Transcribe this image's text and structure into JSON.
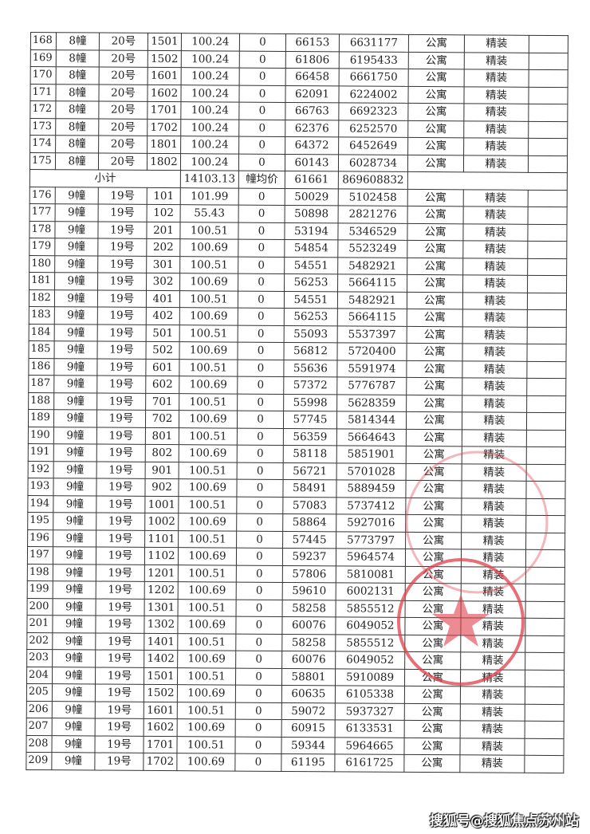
{
  "columns_note": "",
  "rows": [
    [
      "168",
      "8幢",
      "20号",
      "1501",
      "100.24",
      "0",
      "66153",
      "6631177",
      "公寓",
      "精装",
      ""
    ],
    [
      "169",
      "8幢",
      "20号",
      "1502",
      "100.24",
      "0",
      "61806",
      "6195433",
      "公寓",
      "精装",
      ""
    ],
    [
      "170",
      "8幢",
      "20号",
      "1601",
      "100.24",
      "0",
      "66458",
      "6661750",
      "公寓",
      "精装",
      ""
    ],
    [
      "171",
      "8幢",
      "20号",
      "1602",
      "100.24",
      "0",
      "62091",
      "6224002",
      "公寓",
      "精装",
      ""
    ],
    [
      "172",
      "8幢",
      "20号",
      "1701",
      "100.24",
      "0",
      "66763",
      "6692323",
      "公寓",
      "精装",
      ""
    ],
    [
      "173",
      "8幢",
      "20号",
      "1702",
      "100.24",
      "0",
      "62376",
      "6252570",
      "公寓",
      "精装",
      ""
    ],
    [
      "174",
      "8幢",
      "20号",
      "1801",
      "100.24",
      "0",
      "64372",
      "6452649",
      "公寓",
      "精装",
      ""
    ],
    [
      "175",
      "8幢",
      "20号",
      "1802",
      "100.24",
      "0",
      "60143",
      "6028734",
      "公寓",
      "精装",
      ""
    ]
  ],
  "subtotal": {
    "label": "小计",
    "area": "14103.13",
    "avg_label": "幢均价",
    "avg_price": "61661",
    "total": "869608832"
  },
  "rows2": [
    [
      "176",
      "9幢",
      "19号",
      "101",
      "101.99",
      "0",
      "50029",
      "5102458",
      "公寓",
      "精装",
      ""
    ],
    [
      "177",
      "9幢",
      "19号",
      "102",
      "55.43",
      "0",
      "50898",
      "2821276",
      "公寓",
      "精装",
      ""
    ],
    [
      "178",
      "9幢",
      "19号",
      "201",
      "100.51",
      "0",
      "53194",
      "5346529",
      "公寓",
      "精装",
      ""
    ],
    [
      "179",
      "9幢",
      "19号",
      "202",
      "100.69",
      "0",
      "54854",
      "5523249",
      "公寓",
      "精装",
      ""
    ],
    [
      "180",
      "9幢",
      "19号",
      "301",
      "100.51",
      "0",
      "54551",
      "5482921",
      "公寓",
      "精装",
      ""
    ],
    [
      "181",
      "9幢",
      "19号",
      "302",
      "100.69",
      "0",
      "56253",
      "5664115",
      "公寓",
      "精装",
      ""
    ],
    [
      "182",
      "9幢",
      "19号",
      "401",
      "100.51",
      "0",
      "54551",
      "5482921",
      "公寓",
      "精装",
      ""
    ],
    [
      "183",
      "9幢",
      "19号",
      "402",
      "100.69",
      "0",
      "56253",
      "5664115",
      "公寓",
      "精装",
      ""
    ],
    [
      "184",
      "9幢",
      "19号",
      "501",
      "100.51",
      "0",
      "55093",
      "5537397",
      "公寓",
      "精装",
      ""
    ],
    [
      "185",
      "9幢",
      "19号",
      "502",
      "100.69",
      "0",
      "56812",
      "5720400",
      "公寓",
      "精装",
      ""
    ],
    [
      "186",
      "9幢",
      "19号",
      "601",
      "100.51",
      "0",
      "55636",
      "5591974",
      "公寓",
      "精装",
      ""
    ],
    [
      "187",
      "9幢",
      "19号",
      "602",
      "100.69",
      "0",
      "57372",
      "5776787",
      "公寓",
      "精装",
      ""
    ],
    [
      "188",
      "9幢",
      "19号",
      "701",
      "100.51",
      "0",
      "55998",
      "5628359",
      "公寓",
      "精装",
      ""
    ],
    [
      "189",
      "9幢",
      "19号",
      "702",
      "100.69",
      "0",
      "57745",
      "5814344",
      "公寓",
      "精装",
      ""
    ],
    [
      "190",
      "9幢",
      "19号",
      "801",
      "100.51",
      "0",
      "56359",
      "5664643",
      "公寓",
      "精装",
      ""
    ],
    [
      "191",
      "9幢",
      "19号",
      "802",
      "100.69",
      "0",
      "58118",
      "5851901",
      "公寓",
      "精装",
      ""
    ],
    [
      "192",
      "9幢",
      "19号",
      "901",
      "100.51",
      "0",
      "56721",
      "5701028",
      "公寓",
      "精装",
      ""
    ],
    [
      "193",
      "9幢",
      "19号",
      "902",
      "100.69",
      "0",
      "58491",
      "5889459",
      "公寓",
      "精装",
      ""
    ],
    [
      "194",
      "9幢",
      "19号",
      "1001",
      "100.51",
      "0",
      "57083",
      "5737412",
      "公寓",
      "精装",
      ""
    ],
    [
      "195",
      "9幢",
      "19号",
      "1002",
      "100.69",
      "0",
      "58864",
      "5927016",
      "公寓",
      "精装",
      ""
    ],
    [
      "196",
      "9幢",
      "19号",
      "1101",
      "100.51",
      "0",
      "57445",
      "5773797",
      "公寓",
      "精装",
      ""
    ],
    [
      "197",
      "9幢",
      "19号",
      "1102",
      "100.69",
      "0",
      "59237",
      "5964574",
      "公寓",
      "精装",
      ""
    ],
    [
      "198",
      "9幢",
      "19号",
      "1201",
      "100.51",
      "0",
      "57806",
      "5810081",
      "公寓",
      "精装",
      ""
    ],
    [
      "199",
      "9幢",
      "19号",
      "1202",
      "100.69",
      "0",
      "59610",
      "6002131",
      "公寓",
      "精装",
      ""
    ],
    [
      "200",
      "9幢",
      "19号",
      "1301",
      "100.51",
      "0",
      "58258",
      "5855512",
      "公寓",
      "精装",
      ""
    ],
    [
      "201",
      "9幢",
      "19号",
      "1302",
      "100.69",
      "0",
      "60076",
      "6049052",
      "公寓",
      "精装",
      ""
    ],
    [
      "202",
      "9幢",
      "19号",
      "1401",
      "100.51",
      "0",
      "58258",
      "5855512",
      "公寓",
      "精装",
      ""
    ],
    [
      "203",
      "9幢",
      "19号",
      "1402",
      "100.69",
      "0",
      "60076",
      "6049052",
      "公寓",
      "精装",
      ""
    ],
    [
      "204",
      "9幢",
      "19号",
      "1501",
      "100.51",
      "0",
      "58801",
      "5910089",
      "公寓",
      "精装",
      ""
    ],
    [
      "205",
      "9幢",
      "19号",
      "1502",
      "100.69",
      "0",
      "60635",
      "6105338",
      "公寓",
      "精装",
      ""
    ],
    [
      "206",
      "9幢",
      "19号",
      "1601",
      "100.51",
      "0",
      "59072",
      "5937327",
      "公寓",
      "精装",
      ""
    ],
    [
      "207",
      "9幢",
      "19号",
      "1602",
      "100.69",
      "0",
      "60915",
      "6133531",
      "公寓",
      "精装",
      ""
    ],
    [
      "208",
      "9幢",
      "19号",
      "1701",
      "100.51",
      "0",
      "59344",
      "5964665",
      "公寓",
      "精装",
      ""
    ],
    [
      "209",
      "9幢",
      "19号",
      "1702",
      "100.69",
      "0",
      "61195",
      "6161725",
      "公寓",
      "精装",
      ""
    ]
  ],
  "stamp": {
    "color": "#e0404a"
  },
  "watermark": "搜狐号@搜狐焦点苏州站"
}
